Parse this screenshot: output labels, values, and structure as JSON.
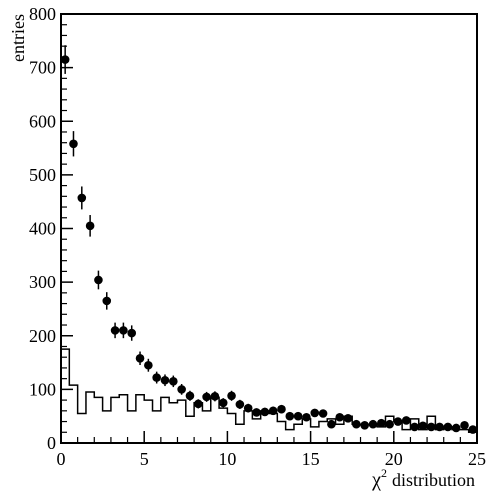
{
  "chart_data": {
    "type": "scatter",
    "title": "",
    "xlabel": "χ² distribution",
    "xlabel_symbol": "χ",
    "xlabel_sup": "2",
    "xlabel_rest": "distribution",
    "ylabel": "entries",
    "xlim": [
      0,
      25
    ],
    "ylim": [
      0,
      800
    ],
    "xticks": [
      0,
      5,
      10,
      15,
      20,
      25
    ],
    "yticks": [
      0,
      100,
      200,
      300,
      400,
      500,
      600,
      700,
      800
    ],
    "grid": false,
    "legend": "none",
    "series": [
      {
        "kind": "points_with_errorbars",
        "x": [
          0.25,
          0.75,
          1.25,
          1.75,
          2.25,
          2.75,
          3.25,
          3.75,
          4.25,
          4.75,
          5.25,
          5.75,
          6.25,
          6.75,
          7.25,
          7.75,
          8.25,
          8.75,
          9.25,
          9.75,
          10.25,
          10.75,
          11.25,
          11.75,
          12.25,
          12.75,
          13.25,
          13.75,
          14.25,
          14.75,
          15.25,
          15.75,
          16.25,
          16.75,
          17.25,
          17.75,
          18.25,
          18.75,
          19.25,
          19.75,
          20.25,
          20.75,
          21.25,
          21.75,
          22.25,
          22.75,
          23.25,
          23.75,
          24.25,
          24.75
        ],
        "y": [
          715,
          558,
          457,
          405,
          304,
          265,
          210,
          210,
          205,
          158,
          145,
          122,
          117,
          115,
          100,
          88,
          73,
          86,
          87,
          75,
          88,
          72,
          65,
          57,
          58,
          60,
          63,
          50,
          50,
          48,
          56,
          55,
          35,
          48,
          46,
          35,
          33,
          35,
          37,
          35,
          40,
          42,
          30,
          32,
          30,
          30,
          30,
          28,
          33,
          25
        ]
      },
      {
        "kind": "histogram_step",
        "bin_width": 0.5,
        "x_start": 0,
        "values": [
          175,
          108,
          55,
          95,
          85,
          60,
          85,
          90,
          60,
          90,
          80,
          60,
          85,
          75,
          80,
          50,
          75,
          60,
          85,
          65,
          55,
          35,
          60,
          45,
          60,
          55,
          40,
          25,
          35,
          45,
          30,
          40,
          45,
          35,
          50,
          35,
          35,
          35,
          30,
          50,
          40,
          25,
          45,
          25,
          50,
          25,
          30,
          25,
          25,
          20
        ]
      }
    ]
  }
}
